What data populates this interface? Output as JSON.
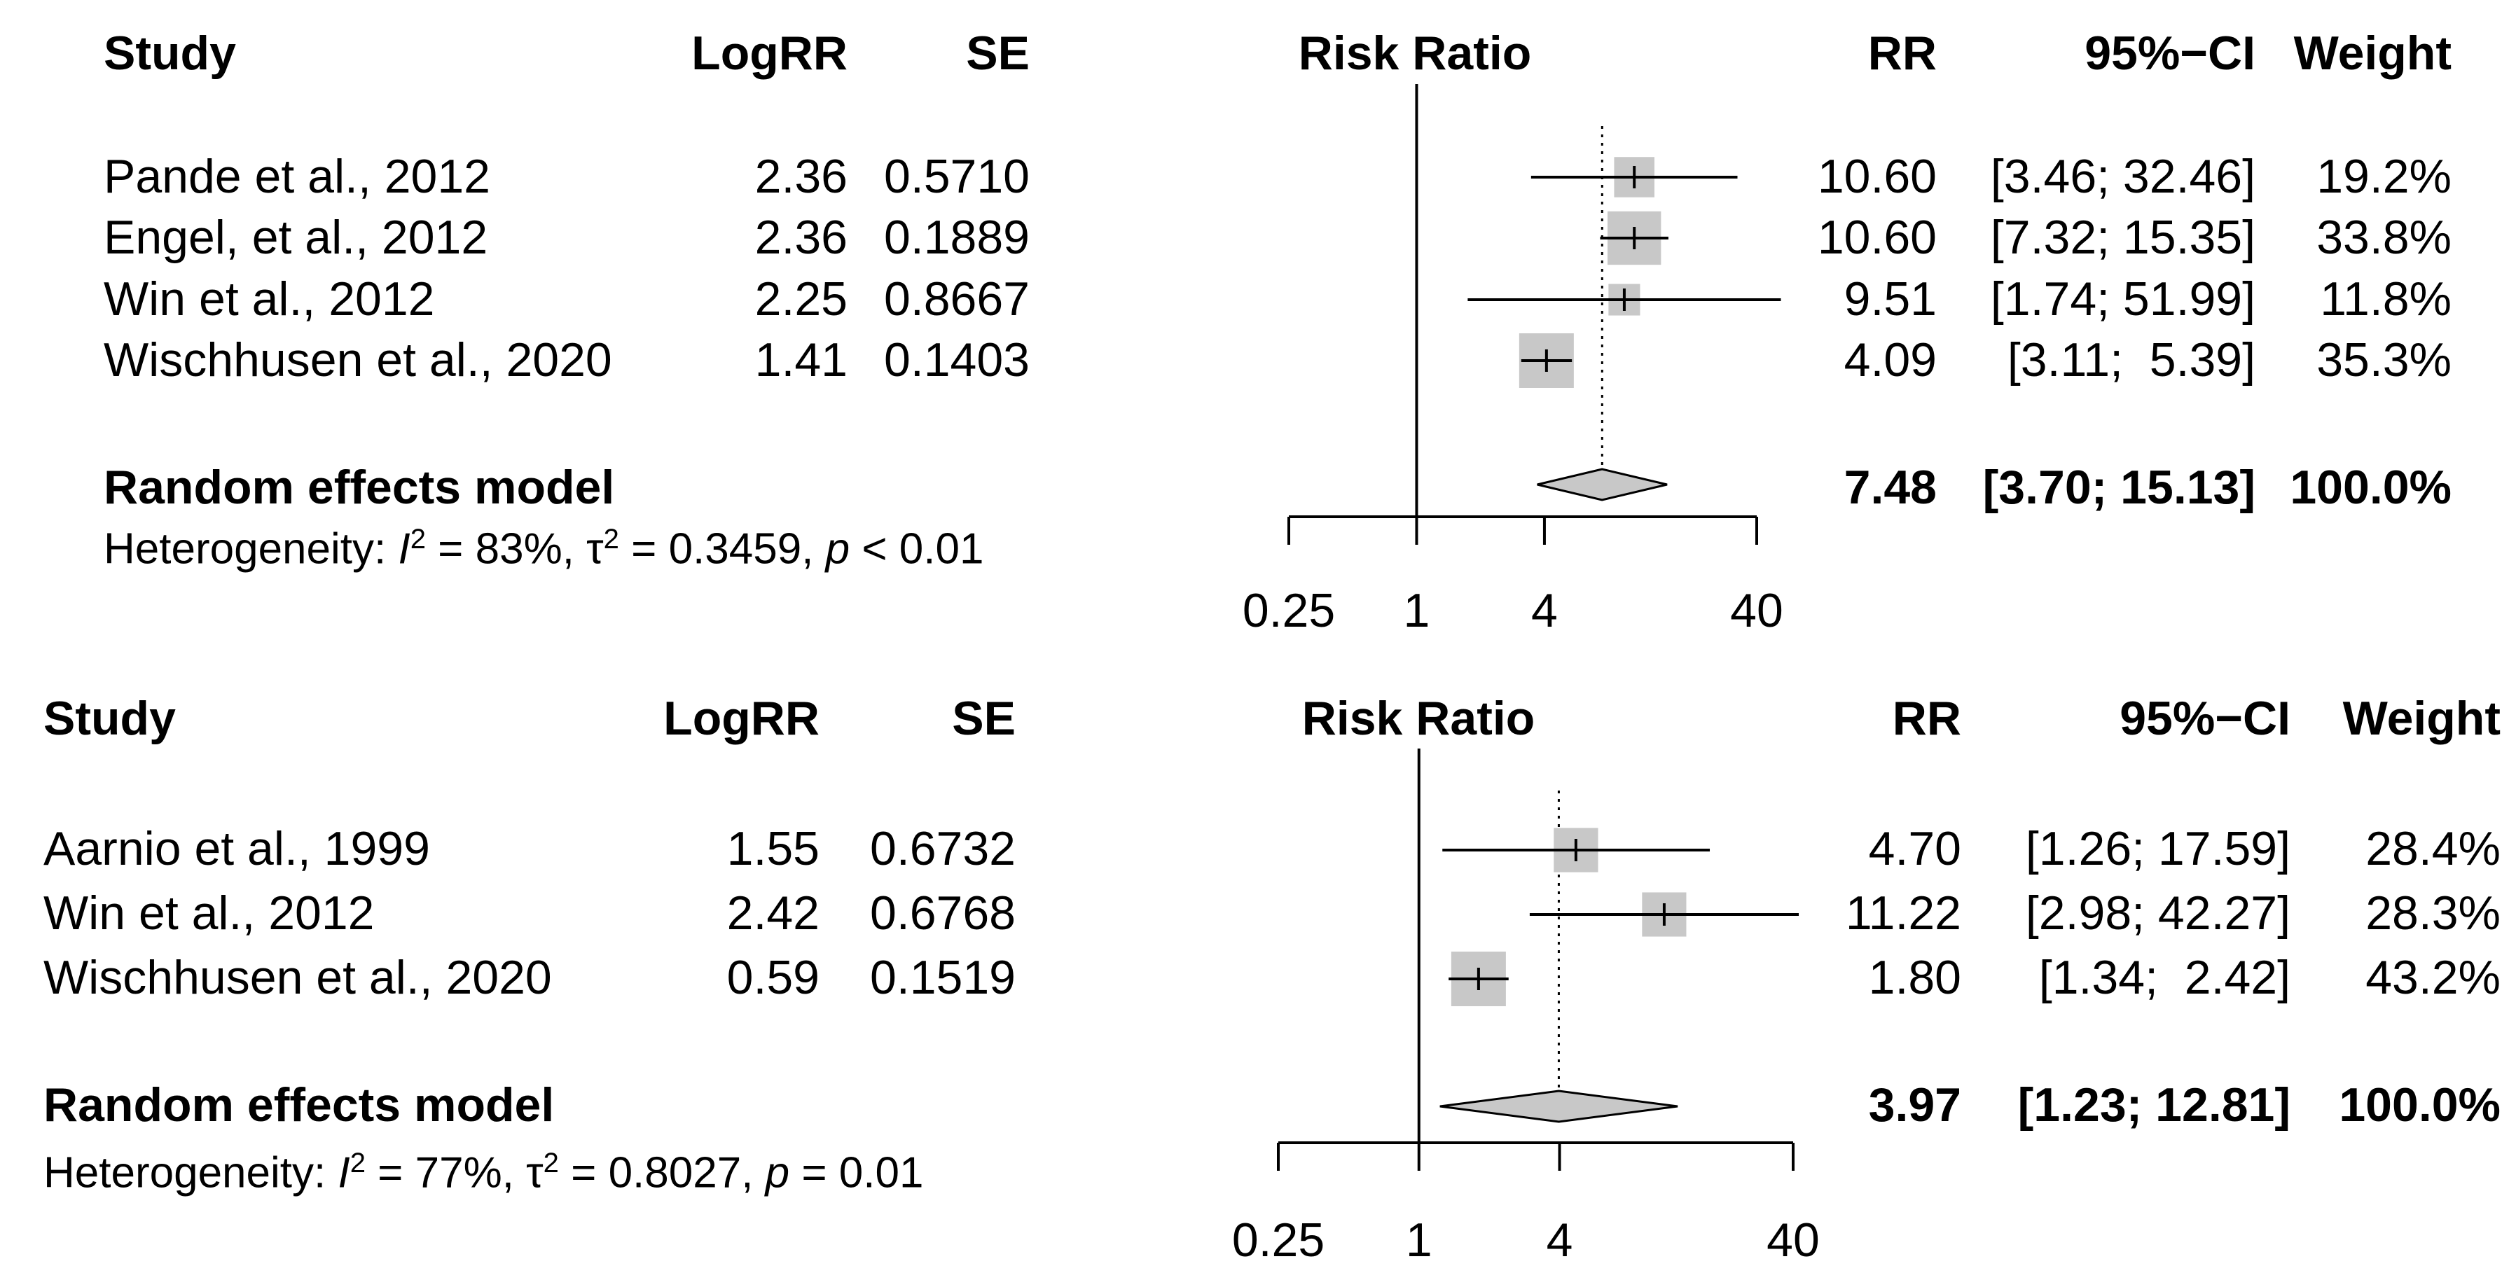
{
  "chart_data": [
    {
      "type": "forest",
      "headers": {
        "study": "Study",
        "logrr": "LogRR",
        "se": "SE",
        "plot": "Risk Ratio",
        "rr": "RR",
        "ci": "95%−CI",
        "weight": "Weight"
      },
      "studies": [
        {
          "name": "Pande et al., 2012",
          "logrr": "2.36",
          "se": "0.5710",
          "rr": 10.6,
          "ci_low": 3.46,
          "ci_high": 32.46,
          "rr_text": "10.60",
          "ci_text": "[3.46; 32.46]",
          "weight": 19.2,
          "weight_text": "19.2%"
        },
        {
          "name": "Engel, et al., 2012",
          "logrr": "2.36",
          "se": "0.1889",
          "rr": 10.6,
          "ci_low": 7.32,
          "ci_high": 15.35,
          "rr_text": "10.60",
          "ci_text": "[7.32; 15.35]",
          "weight": 33.8,
          "weight_text": "33.8%"
        },
        {
          "name": "Win et al., 2012",
          "logrr": "2.25",
          "se": "0.8667",
          "rr": 9.51,
          "ci_low": 1.74,
          "ci_high": 51.99,
          "rr_text": "9.51",
          "ci_text": "[1.74; 51.99]",
          "weight": 11.8,
          "weight_text": "11.8%"
        },
        {
          "name": "Wischhusen et al., 2020",
          "logrr": "1.41",
          "se": "0.1403",
          "rr": 4.09,
          "ci_low": 3.11,
          "ci_high": 5.39,
          "rr_text": "4.09",
          "ci_text": "[3.11;  5.39]",
          "weight": 35.3,
          "weight_text": "35.3%"
        }
      ],
      "model": {
        "label": "Random effects model",
        "rr": 7.48,
        "ci_low": 3.7,
        "ci_high": 15.13,
        "rr_text": "7.48",
        "ci_text": "[3.70; 15.13]",
        "weight_text": "100.0%"
      },
      "heterogeneity": {
        "prefix": "Heterogeneity: ",
        "i2_symbol": "I",
        "i2_value": " = 83%, ",
        "tau2_symbol": "τ",
        "tau2_value": " = 0.3459, ",
        "p_symbol": "p",
        "p_value": " < 0.01"
      },
      "x_axis": {
        "scale": "log",
        "range": [
          0.25,
          40
        ],
        "ticks": [
          0.25,
          1,
          4,
          40
        ],
        "tick_labels": [
          "0.25",
          "1",
          "4",
          "40"
        ]
      }
    },
    {
      "type": "forest",
      "headers": {
        "study": "Study",
        "logrr": "LogRR",
        "se": "SE",
        "plot": "Risk Ratio",
        "rr": "RR",
        "ci": "95%−CI",
        "weight": "Weight"
      },
      "studies": [
        {
          "name": "Aarnio et al., 1999",
          "logrr": "1.55",
          "se": "0.6732",
          "rr": 4.7,
          "ci_low": 1.26,
          "ci_high": 17.59,
          "rr_text": "4.70",
          "ci_text": "[1.26; 17.59]",
          "weight": 28.4,
          "weight_text": "28.4%"
        },
        {
          "name": "Win et al., 2012",
          "logrr": "2.42",
          "se": "0.6768",
          "rr": 11.22,
          "ci_low": 2.98,
          "ci_high": 42.27,
          "rr_text": "11.22",
          "ci_text": "[2.98; 42.27]",
          "weight": 28.3,
          "weight_text": "28.3%"
        },
        {
          "name": "Wischhusen et al., 2020",
          "logrr": "0.59",
          "se": "0.1519",
          "rr": 1.8,
          "ci_low": 1.34,
          "ci_high": 2.42,
          "rr_text": "1.80",
          "ci_text": "[1.34;  2.42]",
          "weight": 43.2,
          "weight_text": "43.2%"
        }
      ],
      "model": {
        "label": "Random effects model",
        "rr": 3.97,
        "ci_low": 1.23,
        "ci_high": 12.81,
        "rr_text": "3.97",
        "ci_text": "[1.23; 12.81]",
        "weight_text": "100.0%"
      },
      "heterogeneity": {
        "prefix": "Heterogeneity: ",
        "i2_symbol": "I",
        "i2_value": " = 77%, ",
        "tau2_symbol": "τ",
        "tau2_value": " = 0.8027, ",
        "p_symbol": "p",
        "p_value": " = 0.01"
      },
      "x_axis": {
        "scale": "log",
        "range": [
          0.25,
          40
        ],
        "ticks": [
          0.25,
          1,
          4,
          40
        ],
        "tick_labels": [
          "0.25",
          "1",
          "4",
          "40"
        ]
      }
    }
  ]
}
